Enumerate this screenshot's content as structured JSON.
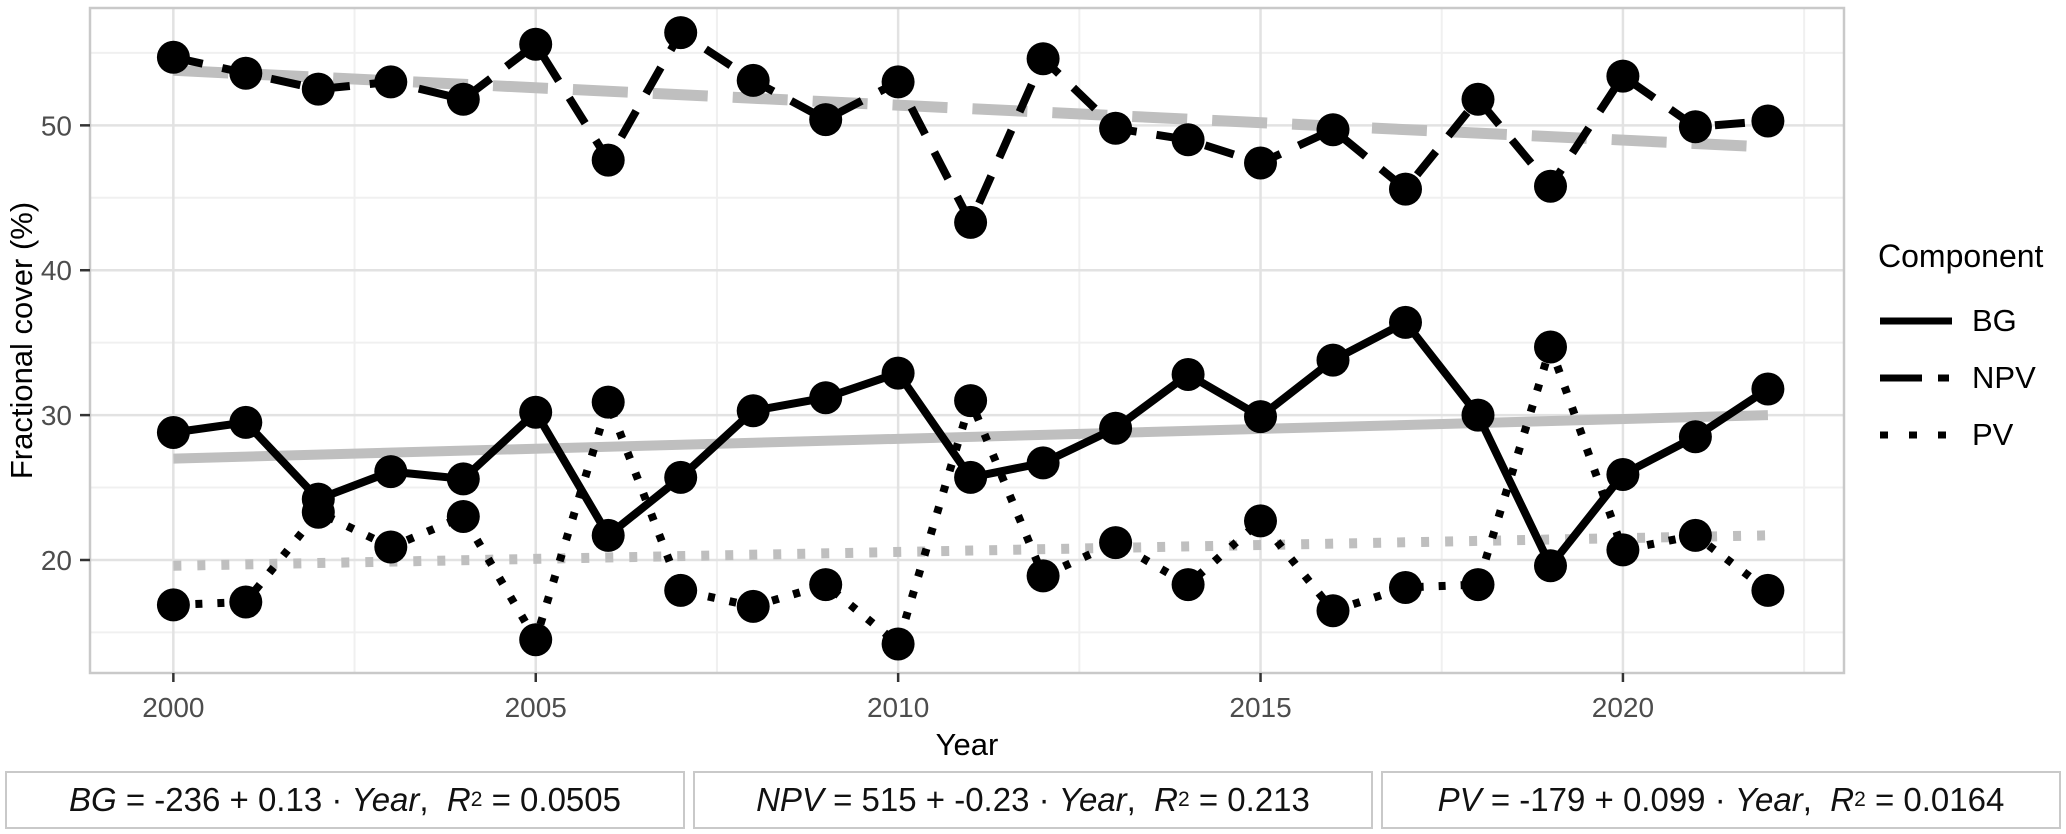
{
  "chart_data": {
    "type": "line",
    "title": "",
    "xlabel": "Year",
    "ylabel": "Fractional cover (%)",
    "x": [
      2000,
      2001,
      2002,
      2003,
      2004,
      2005,
      2006,
      2007,
      2008,
      2009,
      2010,
      2011,
      2012,
      2013,
      2014,
      2015,
      2016,
      2017,
      2018,
      2019,
      2020,
      2021,
      2022
    ],
    "series": [
      {
        "name": "BG",
        "style": "solid",
        "values": [
          28.8,
          29.5,
          24.2,
          26.1,
          25.6,
          30.2,
          21.7,
          25.7,
          30.3,
          31.2,
          32.9,
          25.7,
          26.7,
          29.1,
          32.8,
          29.9,
          33.8,
          36.4,
          30.0,
          19.6,
          25.9,
          28.5,
          31.8
        ]
      },
      {
        "name": "NPV",
        "style": "dashed",
        "values": [
          54.7,
          53.6,
          52.5,
          53.0,
          51.8,
          55.6,
          47.6,
          56.4,
          53.1,
          50.4,
          53.0,
          43.3,
          54.6,
          49.8,
          49.0,
          47.4,
          49.7,
          45.6,
          51.8,
          45.8,
          53.4,
          49.9,
          50.3
        ]
      },
      {
        "name": "PV",
        "style": "dotted",
        "values": [
          16.9,
          17.1,
          23.3,
          20.9,
          23.0,
          14.5,
          30.9,
          17.9,
          16.8,
          18.3,
          14.2,
          31.0,
          18.9,
          21.2,
          18.3,
          22.7,
          16.5,
          18.1,
          18.3,
          34.7,
          20.7,
          21.7,
          17.9
        ]
      }
    ],
    "trendlines": [
      {
        "name": "BG",
        "style": "solid",
        "x0": 2000,
        "y0": 27.0,
        "x1": 2022,
        "y1": 30.0
      },
      {
        "name": "NPV",
        "style": "dashed",
        "x0": 2000,
        "y0": 53.8,
        "x1": 2022,
        "y1": 48.5
      },
      {
        "name": "PV",
        "style": "dotted",
        "x0": 2000,
        "y0": 19.6,
        "x1": 2022,
        "y1": 21.7
      }
    ],
    "x_ticks": [
      2000,
      2005,
      2010,
      2015,
      2020
    ],
    "x_minor": [
      2002.5,
      2007.5,
      2012.5,
      2017.5,
      2022.5
    ],
    "y_ticks": [
      20,
      30,
      40,
      50
    ],
    "y_minor": [
      15,
      25,
      35,
      45,
      55
    ],
    "xlim": [
      1998.85,
      2023.05
    ],
    "ylim": [
      12.2,
      58.1
    ],
    "grid": true,
    "legend_position": "right",
    "colors": {
      "series": "#000000",
      "trend": "#bfbfbf",
      "grid_major": "#e2e2e2",
      "grid_minor": "#f0f0f0",
      "panel_border": "#c9c9c9",
      "tick_text": "#4d4d4d",
      "title_text": "#000000"
    }
  },
  "legend": {
    "title": "Component",
    "items": [
      {
        "label": "BG",
        "style": "solid"
      },
      {
        "label": "NPV",
        "style": "dashed"
      },
      {
        "label": "PV",
        "style": "dotted"
      }
    ]
  },
  "equations": [
    {
      "var": "BG",
      "mid": " = -236 + 0.13 · ",
      "year": "Year",
      "comma": ",  ",
      "r": "R",
      "exp": "2",
      "rval": " = 0.0505"
    },
    {
      "var": "NPV",
      "mid": " = 515 + -0.23 · ",
      "year": "Year",
      "comma": ",  ",
      "r": "R",
      "exp": "2",
      "rval": " = 0.213"
    },
    {
      "var": "PV",
      "mid": " = -179 + 0.099 · ",
      "year": "Year",
      "comma": ",  ",
      "r": "R",
      "exp": "2",
      "rval": " = 0.0164"
    }
  ]
}
